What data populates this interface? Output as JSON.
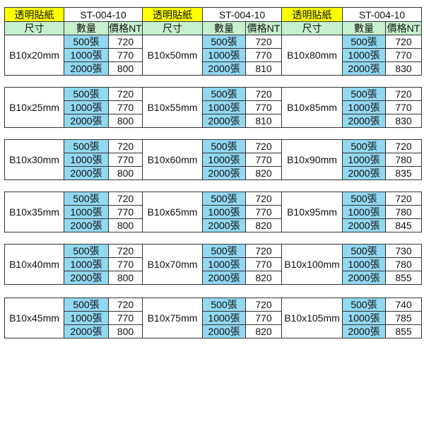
{
  "header": {
    "product": "透明貼紙",
    "code": "ST-004-10",
    "col_size": "尺寸",
    "col_qty": "數量",
    "col_price": "價格NT"
  },
  "quantities": [
    "500張",
    "1000張",
    "2000張"
  ],
  "colors": {
    "header_product": "#ffff00",
    "subheader": "#c6efce",
    "quantity": "#92d8f0"
  },
  "columns": [
    {
      "groups": [
        {
          "size": "B10x20mm",
          "prices": [
            "720",
            "770",
            "800"
          ]
        },
        {
          "size": "B10x25mm",
          "prices": [
            "720",
            "770",
            "800"
          ]
        },
        {
          "size": "B10x30mm",
          "prices": [
            "720",
            "770",
            "800"
          ]
        },
        {
          "size": "B10x35mm",
          "prices": [
            "720",
            "770",
            "800"
          ]
        },
        {
          "size": "B10x40mm",
          "prices": [
            "720",
            "770",
            "800"
          ]
        },
        {
          "size": "B10x45mm",
          "prices": [
            "720",
            "770",
            "800"
          ]
        }
      ]
    },
    {
      "groups": [
        {
          "size": "B10x50mm",
          "prices": [
            "720",
            "770",
            "810"
          ]
        },
        {
          "size": "B10x55mm",
          "prices": [
            "720",
            "770",
            "810"
          ]
        },
        {
          "size": "B10x60mm",
          "prices": [
            "720",
            "770",
            "820"
          ]
        },
        {
          "size": "B10x65mm",
          "prices": [
            "720",
            "770",
            "820"
          ]
        },
        {
          "size": "B10x70mm",
          "prices": [
            "720",
            "770",
            "820"
          ]
        },
        {
          "size": "B10x75mm",
          "prices": [
            "720",
            "770",
            "820"
          ]
        }
      ]
    },
    {
      "groups": [
        {
          "size": "B10x80mm",
          "prices": [
            "720",
            "770",
            "830"
          ]
        },
        {
          "size": "B10x85mm",
          "prices": [
            "720",
            "770",
            "830"
          ]
        },
        {
          "size": "B10x90mm",
          "prices": [
            "720",
            "780",
            "835"
          ]
        },
        {
          "size": "B10x95mm",
          "prices": [
            "720",
            "780",
            "845"
          ]
        },
        {
          "size": "B10x100mm",
          "prices": [
            "730",
            "780",
            "855"
          ]
        },
        {
          "size": "B10x105mm",
          "prices": [
            "740",
            "785",
            "855"
          ]
        }
      ]
    }
  ]
}
